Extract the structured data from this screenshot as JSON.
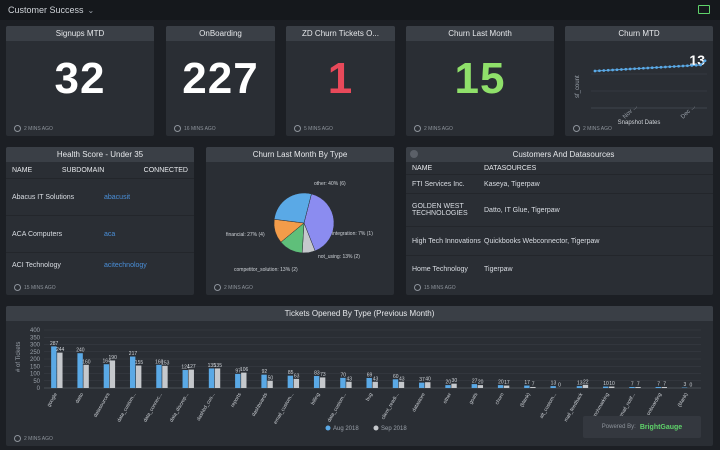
{
  "topbar": {
    "title": "Customer Success"
  },
  "kpis": [
    {
      "title": "Signups MTD",
      "value": "32",
      "color": "#ffffff",
      "updated": "2 MINS AGO"
    },
    {
      "title": "OnBoarding",
      "value": "227",
      "color": "#ffffff",
      "updated": "16 MINS AGO"
    },
    {
      "title": "ZD Churn Tickets O...",
      "value": "1",
      "color": "#e8495a",
      "updated": "5 MINS AGO"
    },
    {
      "title": "Churn Last Month",
      "value": "15",
      "color": "#8fe06a",
      "updated": "2 MINS AGO"
    }
  ],
  "churn_mtd": {
    "title": "Churn MTD",
    "value": "13",
    "updated": "2 MINS AGO",
    "xlabel": "Snapshot Dates",
    "ylabel": "sf_count",
    "ticks_x": [
      "Nov ...",
      "Dec ..."
    ]
  },
  "health": {
    "title": "Health Score - Under 35",
    "columns": [
      "NAME",
      "SUBDOMAIN",
      "CONNECTED"
    ],
    "rows": [
      {
        "name": "Abacus IT Solutions",
        "subdomain": "abacusit"
      },
      {
        "name": "ACA Computers",
        "subdomain": "aca"
      },
      {
        "name": "ACI Technology",
        "subdomain": "acitechnology"
      }
    ],
    "updated": "15 MINS AGO"
  },
  "pie_panel": {
    "title": "Churn Last Month By Type",
    "updated": "2 MINS AGO",
    "chart_data": {
      "type": "pie",
      "labels": [
        "other: 40% (6)",
        "integration: 7% (1)",
        "not_using: 13% (2)",
        "competitor_solution: 13% (2)",
        "financial: 27% (4)"
      ],
      "values": [
        40,
        7,
        13,
        13,
        27
      ],
      "colors": [
        "#8b8cf0",
        "#c5c8cc",
        "#5fbf7a",
        "#f39c4a",
        "#5aa9e6"
      ]
    }
  },
  "customers": {
    "title": "Customers And Datasources",
    "columns": [
      "NAME",
      "DATASOURCES"
    ],
    "rows": [
      {
        "name": "FTI Services Inc.",
        "ds": "Kaseya, Tigerpaw"
      },
      {
        "name": "GOLDEN WEST TECHNOLOGIES",
        "ds": "Datto, IT Glue, Tigerpaw"
      },
      {
        "name": "High Tech Innovations",
        "ds": "Quickbooks Webconnector, Tigerpaw"
      },
      {
        "name": "Home Technology",
        "ds": "Tigerpaw"
      }
    ],
    "updated": "15 MINS AGO"
  },
  "tickets": {
    "title": "Tickets Opened By Type (Previous Month)",
    "updated": "2 MINS AGO",
    "chart_data": {
      "type": "bar",
      "ylabel": "# of Tickets",
      "ylim": [
        0,
        400
      ],
      "yticks": [
        0,
        50,
        100,
        150,
        200,
        250,
        300,
        350,
        400
      ],
      "categories": [
        "google",
        "datto",
        "datasources",
        "data_custom...",
        "data_connec...",
        "data_discrep...",
        "dashbd_cus...",
        "reports",
        "dashboards",
        "email_custom...",
        "billing",
        "data_custom...",
        "bug",
        "client_readi...",
        "datastore",
        "other",
        "goals",
        "churn",
        "(blank)",
        "alt_custom...",
        "mail_feedback",
        "benchmarking",
        "email_notif...",
        "onboarding",
        "(blank)"
      ],
      "series": [
        {
          "name": "Aug 2018",
          "color": "#5aa9e6",
          "values": [
            287,
            240,
            164,
            217,
            160,
            124,
            135,
            97,
            92,
            85,
            83,
            70,
            69,
            60,
            37,
            20,
            27,
            20,
            17,
            13,
            13,
            10,
            7,
            7,
            3
          ]
        },
        {
          "name": "Sep 2018",
          "color": "#c5c8cc",
          "values": [
            244,
            160,
            190,
            155,
            153,
            127,
            135,
            106,
            50,
            63,
            73,
            43,
            43,
            43,
            40,
            30,
            20,
            17,
            7,
            0,
            22,
            10,
            7,
            7,
            0
          ]
        }
      ]
    }
  },
  "powered": {
    "prefix": "Powered By:",
    "brand": "BrightGauge"
  }
}
